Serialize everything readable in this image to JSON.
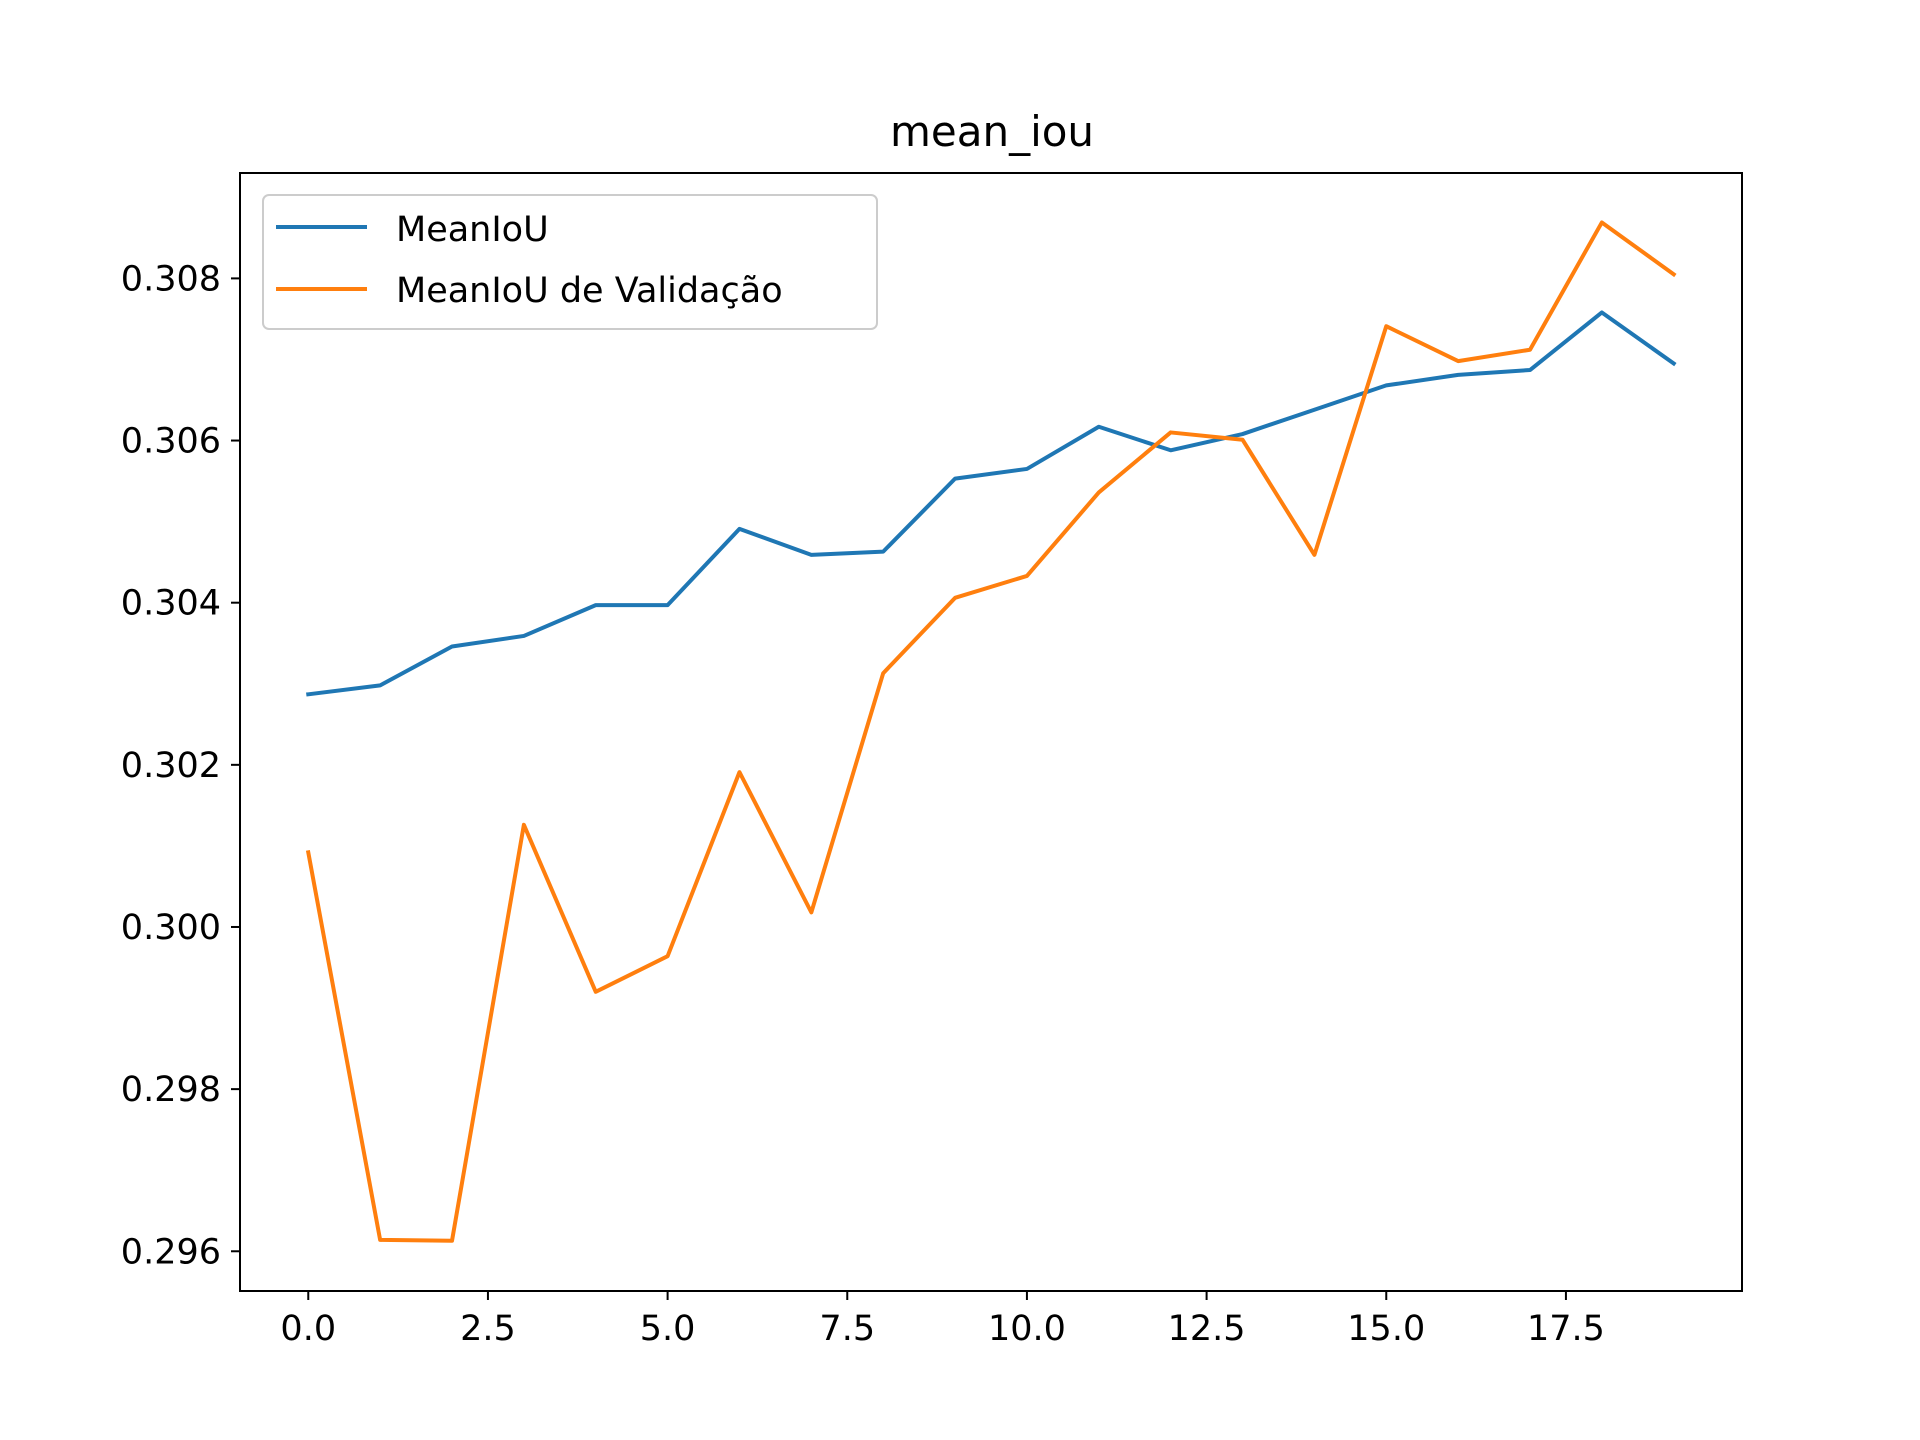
{
  "chart_data": {
    "type": "line",
    "title": "mean_iou",
    "xlabel": "",
    "ylabel": "",
    "x": [
      0,
      1,
      2,
      3,
      4,
      5,
      6,
      7,
      8,
      9,
      10,
      11,
      12,
      13,
      14,
      15,
      16,
      17,
      18,
      19
    ],
    "xlim": [
      -0.95,
      19.95
    ],
    "ylim": [
      0.29551,
      0.3093
    ],
    "xticks": [
      "0.0",
      "2.5",
      "5.0",
      "7.5",
      "10.0",
      "12.5",
      "15.0",
      "17.5"
    ],
    "xtick_values": [
      0,
      2.5,
      5,
      7.5,
      10,
      12.5,
      15,
      17.5
    ],
    "yticks": [
      "0.296",
      "0.298",
      "0.300",
      "0.302",
      "0.304",
      "0.306",
      "0.308"
    ],
    "ytick_values": [
      0.296,
      0.298,
      0.3,
      0.302,
      0.304,
      0.306,
      0.308
    ],
    "grid": false,
    "legend_position": "upper-left",
    "series": [
      {
        "name": "MeanIoU",
        "color": "#1f77b4",
        "values": [
          0.30287,
          0.30298,
          0.30346,
          0.30359,
          0.30397,
          0.30397,
          0.30491,
          0.30459,
          0.30463,
          0.30553,
          0.30565,
          0.30617,
          0.30588,
          0.30608,
          0.30638,
          0.30668,
          0.30681,
          0.30687,
          0.30758,
          0.30695
        ]
      },
      {
        "name": "MeanIoU de Validação",
        "color": "#ff7f0e",
        "values": [
          0.30092,
          0.29614,
          0.29613,
          0.30126,
          0.2992,
          0.29964,
          0.30191,
          0.30018,
          0.30313,
          0.30406,
          0.30433,
          0.30536,
          0.3061,
          0.30601,
          0.30459,
          0.30741,
          0.30698,
          0.30712,
          0.30869,
          0.30805
        ]
      }
    ]
  }
}
